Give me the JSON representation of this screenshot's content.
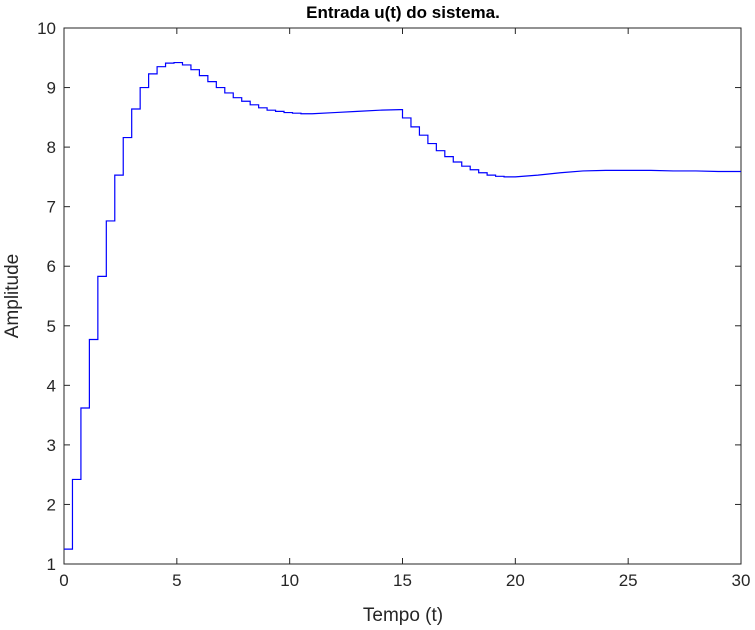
{
  "chart_data": {
    "type": "line",
    "title": "Entrada u(t) do sistema.",
    "xlabel": "Tempo (t)",
    "ylabel": "Amplitude",
    "xlim": [
      0,
      30
    ],
    "ylim": [
      1,
      10
    ],
    "xticks": [
      "0",
      "5",
      "10",
      "15",
      "20",
      "25",
      "30"
    ],
    "yticks": [
      "1",
      "2",
      "3",
      "4",
      "5",
      "6",
      "7",
      "8",
      "9",
      "10"
    ],
    "grid": false,
    "line_color": "#0000ff",
    "step": true,
    "series": [
      {
        "x": [
          0,
          0.375,
          0.75,
          1.125,
          1.5,
          1.875,
          2.25,
          2.625,
          3.0,
          3.375,
          3.75,
          4.125,
          4.5,
          4.875,
          5.25,
          5.625,
          6.0,
          6.375,
          6.75,
          7.125,
          7.5,
          7.875,
          8.25,
          8.625,
          9.0,
          9.375,
          9.75,
          10.125,
          10.5,
          11,
          12,
          13,
          14,
          14.9,
          15.0,
          15.375,
          15.75,
          16.125,
          16.5,
          16.875,
          17.25,
          17.625,
          18.0,
          18.375,
          18.75,
          19.125,
          19.5,
          20,
          21,
          22,
          23,
          24,
          25,
          26,
          27,
          28,
          29,
          30
        ],
        "y": [
          1.25,
          2.42,
          3.62,
          4.77,
          5.83,
          6.76,
          7.53,
          8.16,
          8.64,
          9.0,
          9.23,
          9.35,
          9.41,
          9.42,
          9.38,
          9.3,
          9.2,
          9.1,
          9.0,
          8.91,
          8.83,
          8.77,
          8.71,
          8.66,
          8.62,
          8.6,
          8.58,
          8.57,
          8.56,
          8.56,
          8.58,
          8.6,
          8.62,
          8.63,
          8.49,
          8.34,
          8.2,
          8.06,
          7.94,
          7.84,
          7.75,
          7.68,
          7.62,
          7.57,
          7.53,
          7.51,
          7.5,
          7.5,
          7.53,
          7.57,
          7.6,
          7.61,
          7.61,
          7.61,
          7.6,
          7.6,
          7.59,
          7.59
        ]
      }
    ]
  }
}
